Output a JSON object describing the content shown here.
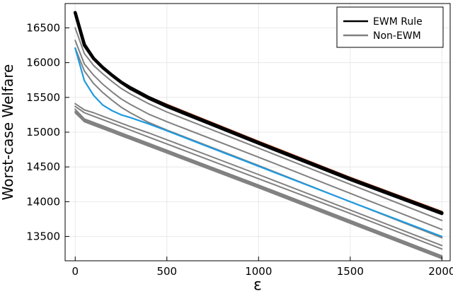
{
  "chart_data": {
    "type": "line",
    "title": "",
    "xlabel": "ε",
    "ylabel": "Worst-case Welfare",
    "xlim": [
      -55,
      2045
    ],
    "ylim": [
      13150,
      16850
    ],
    "x_ticks": [
      0,
      500,
      1000,
      1500,
      2000
    ],
    "y_ticks": [
      13500,
      14000,
      14500,
      15000,
      15500,
      16000,
      16500
    ],
    "x_tick_labels": [
      "0",
      "500",
      "1000",
      "1500",
      "2000"
    ],
    "y_tick_labels": [
      "13500",
      "14000",
      "14500",
      "15000",
      "15500",
      "16000",
      "16500"
    ],
    "grid": true,
    "legend_position": "top-right",
    "legend": [
      {
        "label": "EWM Rule",
        "color": "#000000"
      },
      {
        "label": "Non-EWM",
        "color": "#808080"
      }
    ],
    "colors": {
      "ewm": "#000000",
      "non_ewm": "#808080",
      "highlight_blue": "#1f9ae0",
      "highlight_orange": "#e0623a",
      "grid": "#e8e8e8"
    },
    "x": [
      0,
      50,
      100,
      150,
      200,
      250,
      300,
      400,
      500,
      1000,
      1500,
      2000
    ],
    "series": [
      {
        "values": [
          16700,
          16270,
          16070,
          15940,
          15830,
          15730,
          15650,
          15510,
          15400,
          14870,
          14350,
          13860
        ]
      },
      {
        "values": [
          16720,
          16250,
          16060,
          15930,
          15820,
          15720,
          15630,
          15490,
          15370,
          14840,
          14320,
          13830
        ]
      },
      {
        "values": [
          16500,
          16130,
          15960,
          15840,
          15730,
          15630,
          15550,
          15410,
          15290,
          14770,
          14250,
          13730
        ]
      },
      {
        "values": [
          16320,
          15980,
          15820,
          15690,
          15580,
          15480,
          15400,
          15260,
          15150,
          14640,
          14120,
          13600
        ]
      },
      {
        "values": [
          16210,
          15880,
          15700,
          15570,
          15460,
          15360,
          15280,
          15140,
          15030,
          14520,
          14000,
          13480
        ]
      },
      {
        "values": [
          16210,
          15740,
          15530,
          15390,
          15310,
          15250,
          15210,
          15120,
          15020,
          14510,
          14000,
          13500
        ]
      },
      {
        "values": [
          15410,
          15320,
          15280,
          15230,
          15180,
          15130,
          15080,
          14990,
          14890,
          14390,
          13880,
          13370
        ]
      },
      {
        "values": [
          15370,
          15280,
          15230,
          15180,
          15130,
          15080,
          15030,
          14930,
          14830,
          14330,
          13830,
          13320
        ]
      },
      {
        "values": [
          15330,
          15190,
          15140,
          15090,
          15040,
          14990,
          14940,
          14840,
          14740,
          14240,
          13730,
          13220
        ]
      },
      {
        "values": [
          15300,
          15170,
          15120,
          15070,
          15020,
          14970,
          14920,
          14820,
          14720,
          14220,
          13710,
          13200
        ]
      },
      {
        "values": [
          15280,
          15150,
          15100,
          15050,
          15000,
          14950,
          14900,
          14800,
          14700,
          14200,
          13690,
          13180
        ]
      },
      {
        "values": [
          16720,
          16260,
          16060,
          15930,
          15820,
          15720,
          15640,
          15500,
          15380,
          14850,
          14330,
          13840
        ]
      }
    ]
  }
}
